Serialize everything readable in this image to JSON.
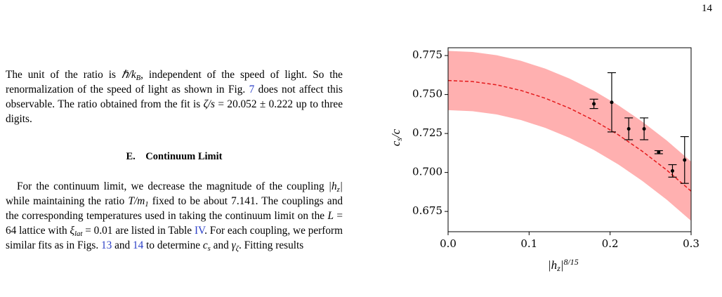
{
  "page_number": "14",
  "paragraphs": [
    [
      {
        "kind": "t",
        "text": "The unit of the ratio is "
      },
      {
        "kind": "m",
        "text": "ℏ/k"
      },
      {
        "kind": "s",
        "text": "B"
      },
      {
        "kind": "t",
        "text": ", independent of the speed of light. So the renormalization of the speed of light as shown in Fig. "
      },
      {
        "kind": "l",
        "text": "7"
      },
      {
        "kind": "t",
        "text": " does not affect this observable. The ratio obtained from the fit is "
      },
      {
        "kind": "m",
        "text": "ζ/s"
      },
      {
        "kind": "t",
        "text": " = 20.052 ± 0.222 up to three digits."
      }
    ],
    [
      {
        "kind": "t",
        "text": "For the continuum limit, we decrease the magnitude of the coupling "
      },
      {
        "kind": "m",
        "text": "|h"
      },
      {
        "kind": "s",
        "text": "z"
      },
      {
        "kind": "m",
        "text": "|"
      },
      {
        "kind": "t",
        "text": " while maintaining the ratio "
      },
      {
        "kind": "m",
        "text": "T/m"
      },
      {
        "kind": "s",
        "text": "1"
      },
      {
        "kind": "t",
        "text": " fixed to be about 7.141. The couplings and the corresponding temperatures used in taking the continuum limit on the "
      },
      {
        "kind": "m",
        "text": "L"
      },
      {
        "kind": "t",
        "text": " = 64 lattice with "
      },
      {
        "kind": "m",
        "text": "ξ"
      },
      {
        "kind": "s",
        "text": "lat"
      },
      {
        "kind": "t",
        "text": " = 0.01 are listed in Table "
      },
      {
        "kind": "l",
        "text": "IV"
      },
      {
        "kind": "t",
        "text": ". For each coupling, we perform similar fits as in Figs. "
      },
      {
        "kind": "l",
        "text": "13"
      },
      {
        "kind": "t",
        "text": " and "
      },
      {
        "kind": "l",
        "text": "14"
      },
      {
        "kind": "t",
        "text": " to determine "
      },
      {
        "kind": "m",
        "text": "c"
      },
      {
        "kind": "s",
        "text": "s"
      },
      {
        "kind": "t",
        "text": " and "
      },
      {
        "kind": "m",
        "text": "γ"
      },
      {
        "kind": "s",
        "text": "ζ"
      },
      {
        "kind": "t",
        "text": ". Fitting results"
      }
    ]
  ],
  "section": {
    "number": "E.",
    "title": "Continuum Limit"
  },
  "chart_data": {
    "type": "scatter",
    "xlabel": [
      {
        "kind": "m",
        "text": "|h"
      },
      {
        "kind": "s",
        "text": "z"
      },
      {
        "kind": "m",
        "text": "|"
      },
      {
        "kind": "p",
        "text": "8/15"
      }
    ],
    "ylabel": [
      {
        "kind": "m",
        "text": "c"
      },
      {
        "kind": "s",
        "text": "s"
      },
      {
        "kind": "m",
        "text": "/c"
      }
    ],
    "xlim": [
      0,
      0.3
    ],
    "ylim": [
      0.662,
      0.78
    ],
    "xticks": [
      {
        "value": 0,
        "label": "0.0"
      },
      0.1,
      0.2,
      0.3
    ],
    "yticks": [
      0.675,
      {
        "value": 0.7,
        "label": "0.700"
      },
      0.725,
      {
        "value": 0.75,
        "label": "0.750"
      },
      0.775
    ],
    "points": {
      "color": "#000000",
      "x": [
        0.18,
        0.202,
        0.223,
        0.242,
        0.26,
        0.277,
        0.292
      ],
      "y": [
        0.744,
        0.745,
        0.728,
        0.728,
        0.713,
        0.701,
        0.708
      ],
      "err": [
        0.003,
        0.019,
        0.007,
        0.007,
        0.001,
        0.004,
        0.015
      ]
    },
    "curve": {
      "color": "#e41a1c",
      "band_color": "#ffb0b0",
      "x": [
        0,
        0.03,
        0.06,
        0.09,
        0.12,
        0.15,
        0.18,
        0.21,
        0.24,
        0.27,
        0.3
      ],
      "y": [
        0.759,
        0.7583,
        0.7562,
        0.7526,
        0.7476,
        0.7412,
        0.7334,
        0.7242,
        0.7135,
        0.7015,
        0.688
      ],
      "lower": [
        0.74,
        0.7393,
        0.7372,
        0.7336,
        0.7286,
        0.7222,
        0.7144,
        0.7052,
        0.6945,
        0.6825,
        0.669
      ],
      "upper": [
        0.778,
        0.7773,
        0.7752,
        0.7716,
        0.7666,
        0.7602,
        0.7524,
        0.7432,
        0.7325,
        0.7205,
        0.707
      ]
    }
  }
}
